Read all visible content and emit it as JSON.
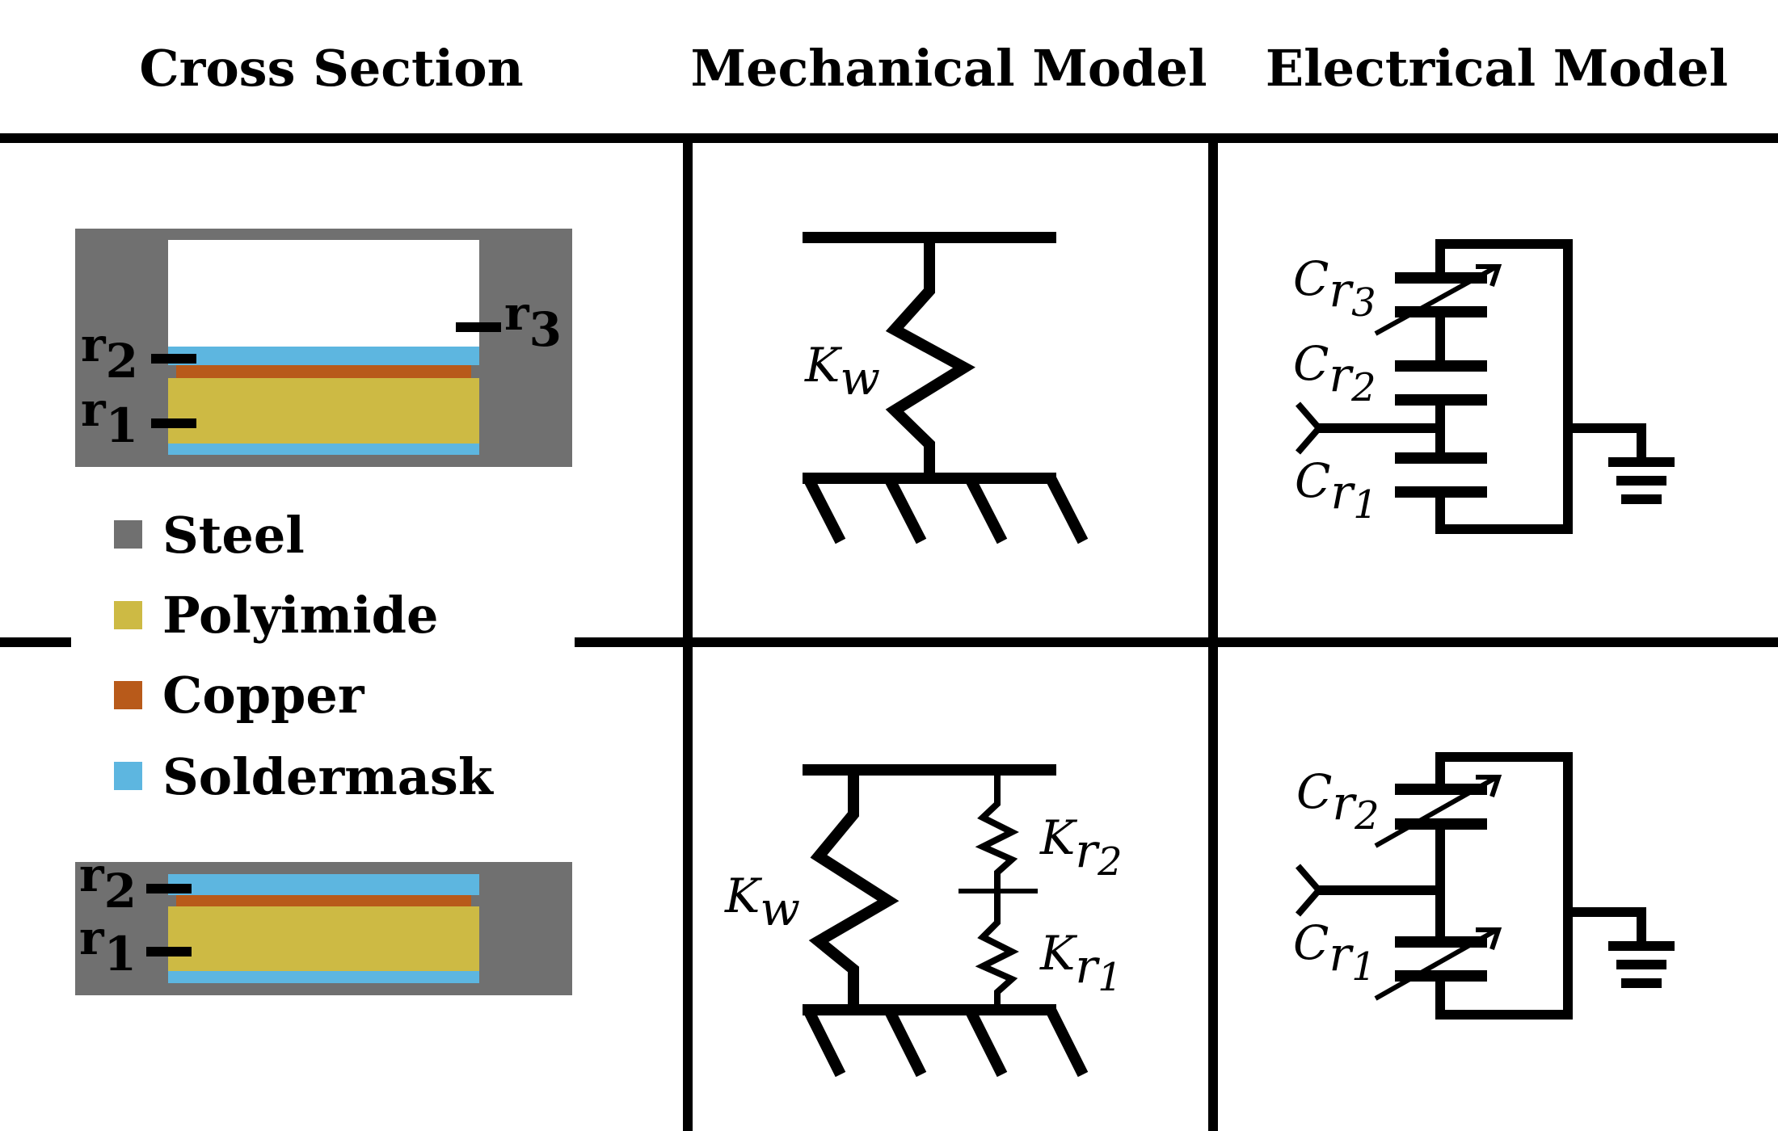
{
  "headers": {
    "cross_section": "Cross Section",
    "mechanical_model": "Mechanical Model",
    "electrical_model": "Electrical Model"
  },
  "legend": [
    {
      "label": "Steel",
      "color": "#707070"
    },
    {
      "label": "Polyimide",
      "color": "#cdba44"
    },
    {
      "label": "Copper",
      "color": "#b85a1a"
    },
    {
      "label": "Soldermask",
      "color": "#5db6e0"
    }
  ],
  "row1": {
    "cross_section": {
      "label_r2": {
        "base": "r",
        "sub": "2"
      },
      "label_r1": {
        "base": "r",
        "sub": "1"
      },
      "label_r3": {
        "base": "r",
        "sub": "3"
      }
    },
    "mechanical": {
      "spring_w": {
        "base": "K",
        "sub": "w"
      }
    },
    "electrical": {
      "cap_r3": {
        "base": "C",
        "sub1": "r",
        "sub2": "3"
      },
      "cap_r2": {
        "base": "C",
        "sub1": "r",
        "sub2": "2"
      },
      "cap_r1": {
        "base": "C",
        "sub1": "r",
        "sub2": "1"
      }
    }
  },
  "row2": {
    "cross_section": {
      "label_r2": {
        "base": "r",
        "sub": "2"
      },
      "label_r1": {
        "base": "r",
        "sub": "1"
      }
    },
    "mechanical": {
      "spring_w": {
        "base": "K",
        "sub": "w"
      },
      "spring_r2": {
        "base": "K",
        "sub1": "r",
        "sub2": "2"
      },
      "spring_r1": {
        "base": "K",
        "sub1": "r",
        "sub2": "1"
      }
    },
    "electrical": {
      "cap_r2": {
        "base": "C",
        "sub1": "r",
        "sub2": "2"
      },
      "cap_r1": {
        "base": "C",
        "sub1": "r",
        "sub2": "1"
      }
    }
  }
}
